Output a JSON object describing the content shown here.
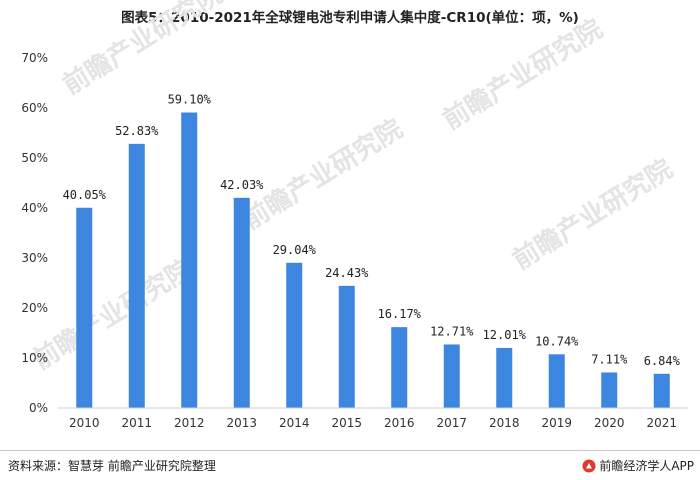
{
  "title": "图表5：2010-2021年全球锂电池专利申请人集中度-CR10(单位：项，%)",
  "chart_data": {
    "type": "bar",
    "title": "图表5：2010-2021年全球锂电池专利申请人集中度-CR10(单位：项，%)",
    "categories": [
      "2010",
      "2011",
      "2012",
      "2013",
      "2014",
      "2015",
      "2016",
      "2017",
      "2018",
      "2019",
      "2020",
      "2021"
    ],
    "values": [
      40.05,
      52.83,
      59.1,
      42.03,
      29.04,
      24.43,
      16.17,
      12.71,
      12.01,
      10.74,
      7.11,
      6.84
    ],
    "data_labels": [
      "40.05%",
      "52.83%",
      "59.10%",
      "42.03%",
      "29.04%",
      "24.43%",
      "16.17%",
      "12.71%",
      "12.01%",
      "10.74%",
      "7.11%",
      "6.84%"
    ],
    "yticks": [
      "0%",
      "10%",
      "20%",
      "30%",
      "40%",
      "50%",
      "60%",
      "70%"
    ],
    "ylim": [
      0,
      70
    ],
    "xlabel": "",
    "ylabel": "",
    "grid": false,
    "bar_color": "#3d86df"
  },
  "footer": {
    "source": "资料来源：智慧芽 前瞻产业研究院整理",
    "brand": "前瞻经济学人APP",
    "brand_color": "#e03a2f"
  }
}
